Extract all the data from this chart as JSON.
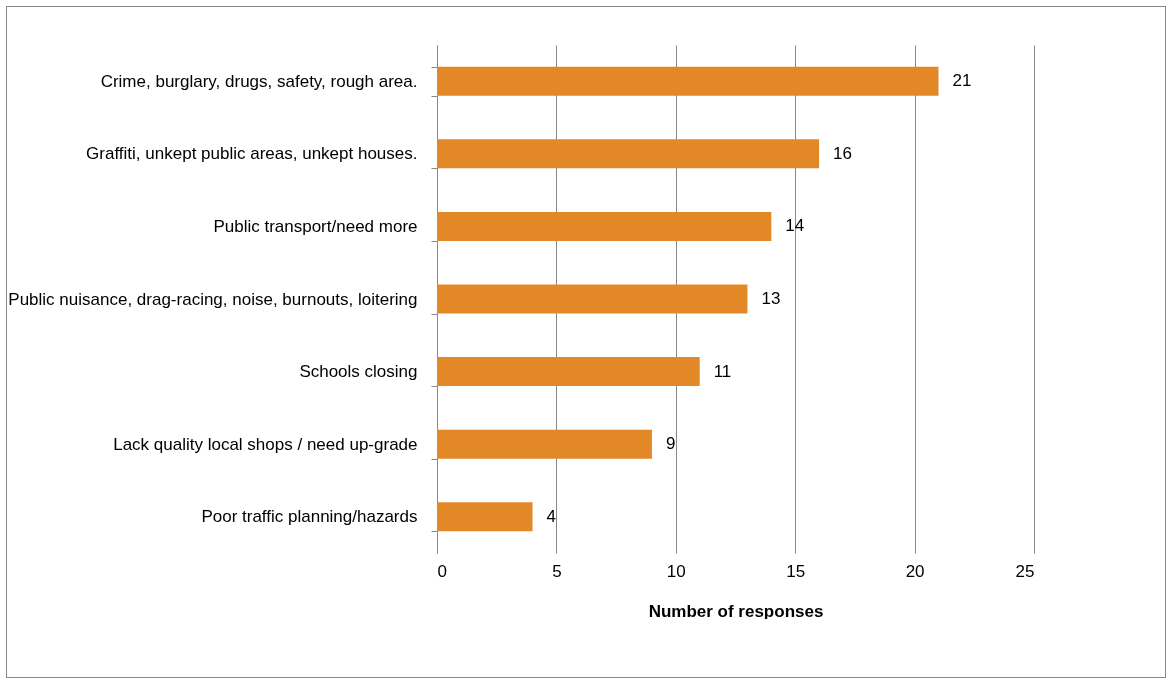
{
  "chart_data": {
    "type": "bar",
    "orientation": "horizontal",
    "xlabel": "Number of responses",
    "categories": [
      "Crime, burglary, drugs, safety, rough area.",
      "Graffiti, unkept public areas, unkept houses.",
      "Public transport/need more",
      "Public nuisance, drag-racing, noise, burnouts, loitering",
      "Schools closing",
      "Lack quality local shops / need up-grade",
      "Poor traffic planning/hazards"
    ],
    "values": [
      21,
      16,
      14,
      13,
      11,
      9,
      4
    ],
    "color": "#e38826",
    "xlim": [
      0,
      25
    ],
    "xticks": [
      0,
      5,
      10,
      15,
      20,
      25
    ],
    "grid": "x",
    "data_labels": true
  }
}
